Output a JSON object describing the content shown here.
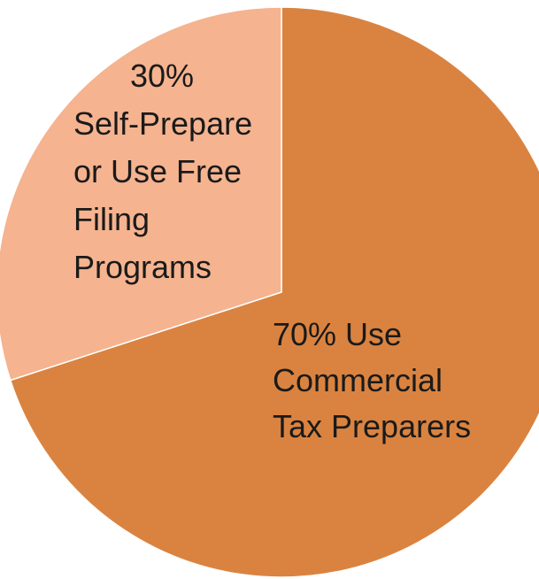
{
  "chart_data": {
    "type": "pie",
    "title": "",
    "slices": [
      {
        "label_lines": [
          "70% Use",
          "Commercial",
          "Tax Preparers"
        ],
        "value": 70,
        "color": "#DA8340"
      },
      {
        "label_lines": [
          "30%",
          "Self-Prepare",
          "or Use Free",
          "Filing",
          "Programs"
        ],
        "value": 30,
        "color": "#F5B38F"
      }
    ],
    "legend": "none",
    "start_angle_deg": 0,
    "direction": "clockwise"
  }
}
